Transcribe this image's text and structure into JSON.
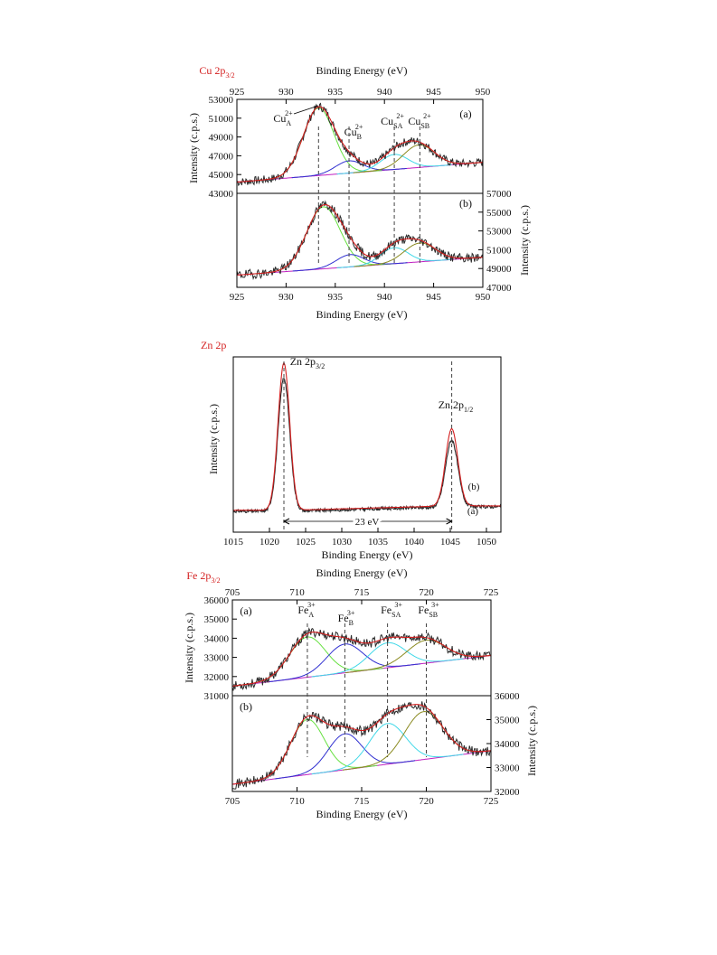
{
  "chart_data": [
    {
      "panel_label": "Cu 2p3/2",
      "type": "line",
      "xlabel": "Binding Energy (eV)",
      "ylabel_left": "Intensity (c.p.s.)",
      "ylabel_right": "Intensity (c.p.s.)",
      "xlim": [
        925,
        950
      ],
      "x_ticks": [
        925,
        930,
        935,
        940,
        945,
        950
      ],
      "subplots": [
        {
          "label": "(a)",
          "ylim": [
            43000,
            53000
          ],
          "y_ticks": [
            43000,
            45000,
            47000,
            49000,
            51000,
            53000
          ],
          "background": {
            "x": [
              925,
              950
            ],
            "y": [
              44200,
              46300
            ]
          },
          "peaks": [
            {
              "name": "CuA2+",
              "center": 933.3,
              "height": 7200,
              "sigma": 1.55
            },
            {
              "name": "CuB2+",
              "center": 936.4,
              "height": 1300,
              "sigma": 1.4
            },
            {
              "name": "CuSA2+",
              "center": 941.0,
              "height": 1600,
              "sigma": 1.4
            },
            {
              "name": "CuSB2+",
              "center": 943.5,
              "height": 2400,
              "sigma": 1.6
            }
          ]
        },
        {
          "label": "(b)",
          "ylim": [
            47000,
            57000
          ],
          "y_ticks": [
            47000,
            49000,
            51000,
            53000,
            55000,
            57000
          ],
          "background": {
            "x": [
              925,
              950
            ],
            "y": [
              48300,
              50200
            ]
          },
          "peaks": [
            {
              "name": "CuA2+",
              "center": 933.8,
              "height": 6600,
              "sigma": 1.7
            },
            {
              "name": "CuB2+",
              "center": 936.5,
              "height": 1300,
              "sigma": 1.4
            },
            {
              "name": "CuSA2+",
              "center": 941.0,
              "height": 1700,
              "sigma": 1.4
            },
            {
              "name": "CuSB2+",
              "center": 943.6,
              "height": 2000,
              "sigma": 1.6
            }
          ]
        }
      ],
      "markers": [
        933.3,
        936.4,
        941.0,
        943.6
      ],
      "annotations": [
        "(a)",
        "(b)"
      ]
    },
    {
      "panel_label": "Zn 2p",
      "type": "line",
      "xlabel": "Binding Energy (eV)",
      "ylabel": "Intensity (c.p.s.)",
      "xlim": [
        1015,
        1052
      ],
      "x_ticks": [
        1015,
        1020,
        1025,
        1030,
        1035,
        1040,
        1045,
        1050
      ],
      "series": [
        {
          "name": "(a)",
          "peaks": [
            {
              "center": 1022.0,
              "height": 0.76
            },
            {
              "center": 1045.2,
              "height": 0.38
            }
          ]
        },
        {
          "name": "(b)",
          "peaks": [
            {
              "center": 1022.0,
              "height": 0.84
            },
            {
              "center": 1045.2,
              "height": 0.44
            }
          ]
        }
      ],
      "markers": [
        1022.0,
        1045.2
      ],
      "annotations": [
        "Zn 2p3/2",
        "Zn 2p1/2",
        "23 eV",
        "(a)",
        "(b)"
      ]
    },
    {
      "panel_label": "Fe 2p3/2",
      "type": "line",
      "xlabel": "Binding Energy (eV)",
      "ylabel_left": "Intensity (c.p.s.)",
      "ylabel_right": "Intensity (c.p.s.)",
      "xlim": [
        705,
        725
      ],
      "x_ticks": [
        705,
        710,
        715,
        720,
        725
      ],
      "subplots": [
        {
          "label": "(a)",
          "ylim": [
            31000,
            36000
          ],
          "y_ticks": [
            31000,
            32000,
            33000,
            34000,
            35000,
            36000
          ],
          "background": {
            "x": [
              705,
              725
            ],
            "y": [
              31500,
              33100
            ]
          },
          "peaks": [
            {
              "name": "FeA3+",
              "center": 710.8,
              "height": 2100,
              "sigma": 1.4
            },
            {
              "name": "FeB3+",
              "center": 713.7,
              "height": 1500,
              "sigma": 1.4
            },
            {
              "name": "FeSA3+",
              "center": 717.0,
              "height": 1300,
              "sigma": 1.4
            },
            {
              "name": "FeSB3+",
              "center": 720.0,
              "height": 1200,
              "sigma": 1.5
            }
          ]
        },
        {
          "label": "(b)",
          "ylim": [
            32000,
            36000
          ],
          "y_ticks": [
            32000,
            33000,
            34000,
            35000,
            36000
          ],
          "background": {
            "x": [
              705,
              725
            ],
            "y": [
              32300,
              33700
            ]
          },
          "peaks": [
            {
              "name": "FeA3+",
              "center": 710.8,
              "height": 2300,
              "sigma": 1.3
            },
            {
              "name": "FeB3+",
              "center": 713.7,
              "height": 1500,
              "sigma": 1.3
            },
            {
              "name": "FeSA3+",
              "center": 717.0,
              "height": 1700,
              "sigma": 1.4
            },
            {
              "name": "FeSB3+",
              "center": 719.8,
              "height": 2000,
              "sigma": 1.5
            }
          ]
        }
      ],
      "markers": [
        710.8,
        713.7,
        717.0,
        720.0
      ],
      "annotations": [
        "(a)",
        "(b)"
      ]
    }
  ],
  "colors": {
    "panel_title": "#d42020",
    "data": "#2a2a2a",
    "fit_envelope": "#d42020",
    "background": "#c020c0",
    "peak_colors": [
      "#66e040",
      "#3030d0",
      "#40d8e8",
      "#8a8a20",
      "#b0b0b0"
    ]
  }
}
